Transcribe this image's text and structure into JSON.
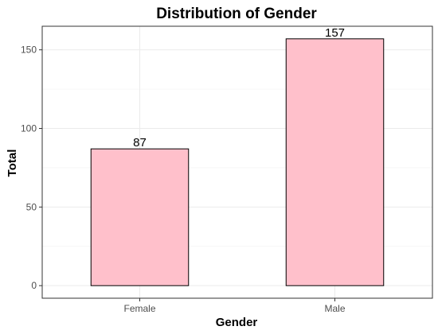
{
  "chart_data": {
    "type": "bar",
    "title": "Distribution of Gender",
    "xlabel": "Gender",
    "ylabel": "Total",
    "categories": [
      "Female",
      "Male"
    ],
    "values": [
      87,
      157
    ],
    "value_labels": [
      "87",
      "157"
    ],
    "ylim": [
      -8,
      165
    ],
    "yticks": [
      0,
      50,
      100,
      150
    ],
    "ytick_labels": [
      "0",
      "50",
      "100",
      "150"
    ],
    "grid": true,
    "legend": "none",
    "colors": {
      "bar_fill": "#ffc0cb",
      "bar_stroke": "#000000",
      "panel_border": "#333333",
      "grid": "#ebebeb"
    }
  }
}
